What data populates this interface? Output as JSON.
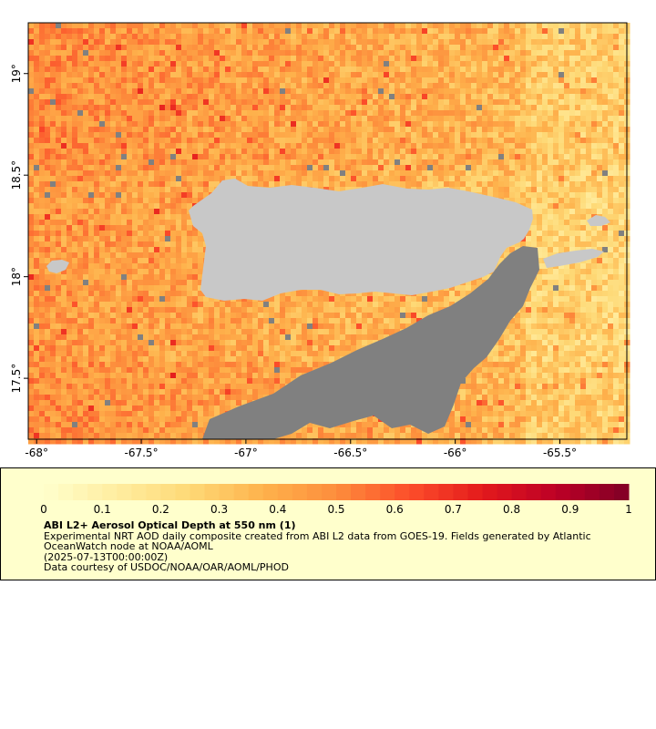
{
  "map": {
    "lat_range": [
      17.2,
      19.25
    ],
    "lon_range": [
      -68.04,
      -65.18
    ],
    "lat_ticks": [
      {
        "value": 19.0,
        "label": "19°"
      },
      {
        "value": 18.5,
        "label": "18.5°"
      },
      {
        "value": 18.0,
        "label": "18°"
      },
      {
        "value": 17.5,
        "label": "17.5°"
      }
    ],
    "lon_ticks": [
      {
        "value": -68.0,
        "label": "-68°"
      },
      {
        "value": -67.5,
        "label": "-67.5°"
      },
      {
        "value": -67.0,
        "label": "-67°"
      },
      {
        "value": -66.5,
        "label": "-66.5°"
      },
      {
        "value": -66.0,
        "label": "-66°"
      },
      {
        "value": -65.5,
        "label": "-65.5°"
      }
    ],
    "land_color": "#c8c8c8",
    "nodata_color": "#808080"
  },
  "colorbar": {
    "min": 0,
    "max": 1,
    "palette": [
      "#ffffcc",
      "#ffeda0",
      "#fed976",
      "#feb24c",
      "#fd8d3c",
      "#fc4e2a",
      "#e31a1c",
      "#bd0026",
      "#800026"
    ],
    "ticks": [
      {
        "value": 0,
        "label": "0"
      },
      {
        "value": 0.1,
        "label": "0.1"
      },
      {
        "value": 0.2,
        "label": "0.2"
      },
      {
        "value": 0.3,
        "label": "0.3"
      },
      {
        "value": 0.4,
        "label": "0.4"
      },
      {
        "value": 0.5,
        "label": "0.5"
      },
      {
        "value": 0.6,
        "label": "0.6"
      },
      {
        "value": 0.7,
        "label": "0.7"
      },
      {
        "value": 0.8,
        "label": "0.8"
      },
      {
        "value": 0.9,
        "label": "0.9"
      },
      {
        "value": 1,
        "label": "1"
      }
    ]
  },
  "legend": {
    "title": "ABI L2+ Aerosol Optical Depth at 550 nm (1)",
    "description": "Experimental NRT AOD daily composite created from ABI L2 data from GOES-19. Fields generated by Atlantic OceanWatch node at NOAA/AOML",
    "time": "(2025-07-13T00:00:00Z)",
    "credit": "Data courtesy of USDOC/NOAA/OAR/AOML/PHOD"
  }
}
